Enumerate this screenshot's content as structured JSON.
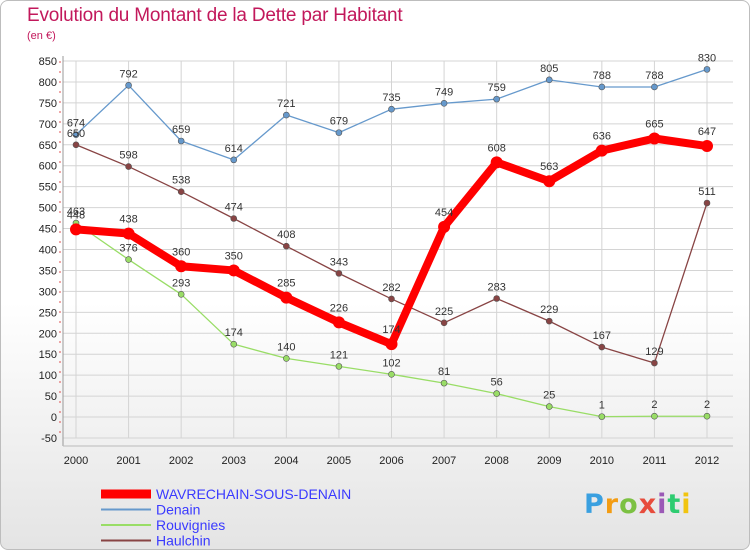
{
  "title": "Evolution du Montant de la Dette par Habitant",
  "subtitle": "(en €)",
  "logo": {
    "letters": [
      "P",
      "r",
      "o",
      "x",
      "i",
      "t",
      "i"
    ],
    "colors": [
      "#3aa0e0",
      "#f39c12",
      "#7cc142",
      "#e74c3c",
      "#9b59b6",
      "#2ecc71",
      "#f1c40f"
    ]
  },
  "chart_data": {
    "type": "line",
    "title": "Evolution du Montant de la Dette par Habitant",
    "subtitle": "(en €)",
    "x": [
      "2000",
      "2001",
      "2002",
      "2003",
      "2004",
      "2005",
      "2006",
      "2007",
      "2008",
      "2009",
      "2010",
      "2011",
      "2012"
    ],
    "ylim": [
      -50,
      850
    ],
    "yticks": [
      -50,
      0,
      50,
      100,
      150,
      200,
      250,
      300,
      350,
      400,
      450,
      500,
      550,
      600,
      650,
      700,
      750,
      800,
      850
    ],
    "grid": true,
    "legend": "bottom-left",
    "series": [
      {
        "name": "WAVRECHAIN-SOUS-DENAIN",
        "color": "#ff0000",
        "values": [
          448,
          438,
          360,
          350,
          285,
          226,
          174,
          454,
          608,
          563,
          636,
          665,
          647
        ]
      },
      {
        "name": "Denain",
        "color": "#6699cc",
        "values": [
          674,
          792,
          659,
          614,
          721,
          679,
          735,
          749,
          759,
          805,
          788,
          788,
          830
        ]
      },
      {
        "name": "Rouvignies",
        "color": "#99dd66",
        "values": [
          463,
          376,
          293,
          174,
          140,
          121,
          102,
          81,
          56,
          25,
          1,
          2,
          2
        ]
      },
      {
        "name": "Haulchin",
        "color": "#884444",
        "values": [
          650,
          598,
          538,
          474,
          408,
          343,
          282,
          225,
          283,
          229,
          167,
          129,
          511
        ]
      }
    ]
  }
}
